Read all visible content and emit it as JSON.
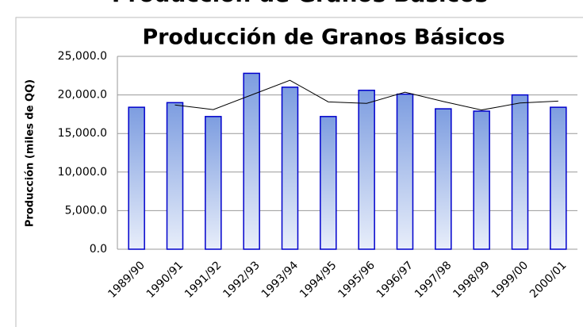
{
  "banner": "Producción de Granos Básicos",
  "chart_data": {
    "type": "bar",
    "title": "Producción de Granos Básicos",
    "y_label": "Producción (miles de QQ)",
    "categories": [
      "1989/90",
      "1990/91",
      "1991/92",
      "1992/93",
      "1993/94",
      "1994/95",
      "1995/96",
      "1996/97",
      "1997/98",
      "1998/99",
      "1999/00",
      "2000/01"
    ],
    "series": [
      {
        "type": "bar",
        "color": "#0000cc",
        "values": [
          18400,
          19000,
          17200,
          22800,
          21000,
          17200,
          20600,
          20100,
          18200,
          17900,
          20000,
          18400
        ]
      },
      {
        "type": "line",
        "color": "#000000",
        "values": [
          null,
          18700,
          18100,
          20000,
          21900,
          19100,
          18900,
          20350,
          19150,
          18050,
          18950,
          19200
        ]
      }
    ],
    "ylim": [
      0,
      25000
    ],
    "yticks": [
      {
        "value": 0,
        "label": "0.0"
      },
      {
        "value": 5000,
        "label": "5,000.0"
      },
      {
        "value": 10000,
        "label": "10,000.0"
      },
      {
        "value": 15000,
        "label": "15,000.0"
      },
      {
        "value": 20000,
        "label": "20,000.0"
      },
      {
        "value": 25000,
        "label": "25,000.0"
      }
    ],
    "grid": true
  }
}
